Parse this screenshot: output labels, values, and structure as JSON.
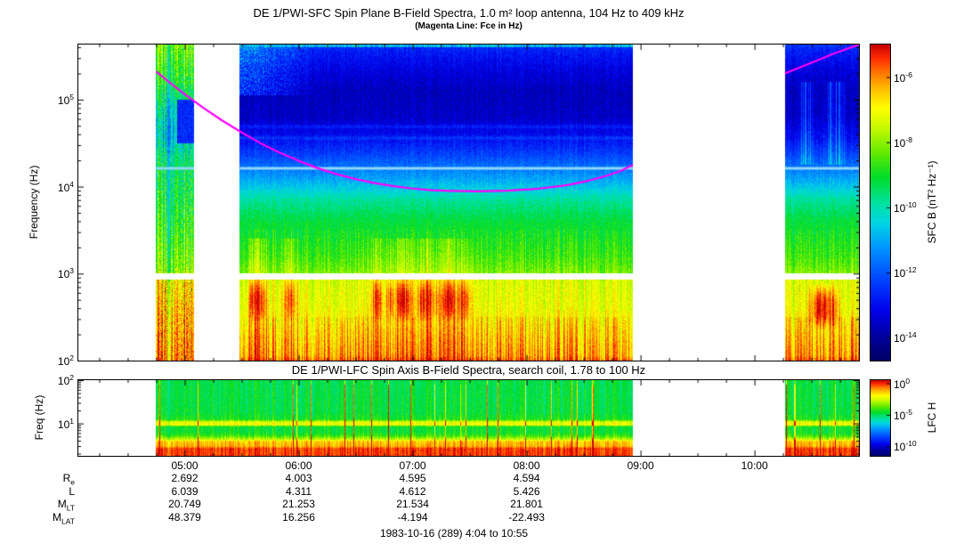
{
  "caption": "1983-10-16 (289) 4:04 to 10:55",
  "colormap_stops": [
    {
      "v": 0.0,
      "rgb": [
        0,
        0,
        100
      ]
    },
    {
      "v": 0.08,
      "rgb": [
        0,
        0,
        160
      ]
    },
    {
      "v": 0.16,
      "rgb": [
        0,
        0,
        235
      ]
    },
    {
      "v": 0.26,
      "rgb": [
        0,
        70,
        255
      ]
    },
    {
      "v": 0.36,
      "rgb": [
        0,
        150,
        255
      ]
    },
    {
      "v": 0.44,
      "rgb": [
        0,
        215,
        225
      ]
    },
    {
      "v": 0.5,
      "rgb": [
        0,
        225,
        160
      ]
    },
    {
      "v": 0.58,
      "rgb": [
        0,
        220,
        40
      ]
    },
    {
      "v": 0.66,
      "rgb": [
        100,
        235,
        0
      ]
    },
    {
      "v": 0.74,
      "rgb": [
        200,
        250,
        0
      ]
    },
    {
      "v": 0.8,
      "rgb": [
        255,
        255,
        0
      ]
    },
    {
      "v": 0.86,
      "rgb": [
        255,
        190,
        0
      ]
    },
    {
      "v": 0.91,
      "rgb": [
        255,
        120,
        0
      ]
    },
    {
      "v": 0.96,
      "rgb": [
        255,
        40,
        0
      ]
    },
    {
      "v": 1.0,
      "rgb": [
        200,
        0,
        0
      ]
    }
  ],
  "chart_data": [
    {
      "type": "heatmap",
      "title": "DE 1/PWI-SFC  Spin Plane B-Field Spectra, 1.0 m² loop antenna, 104 Hz to 409 kHz",
      "subtitle": "(Magenta Line: Fce in Hz)",
      "ylabel": "Frequency (Hz)",
      "yscale": "log",
      "ylim_hz": [
        100,
        430000
      ],
      "yticks": [
        {
          "base": "10",
          "sup": "2",
          "exp": 2
        },
        {
          "base": "10",
          "sup": "3",
          "exp": 3
        },
        {
          "base": "10",
          "sup": "4",
          "exp": 4
        },
        {
          "base": "10",
          "sup": "5",
          "exp": 5
        }
      ],
      "xlim_minutes": [
        244,
        655
      ],
      "xticks": [
        {
          "minute": 300,
          "label": "05:00"
        },
        {
          "minute": 360,
          "label": "06:00"
        },
        {
          "minute": 420,
          "label": "07:00"
        },
        {
          "minute": 480,
          "label": "08:00"
        },
        {
          "minute": 540,
          "label": "09:00"
        },
        {
          "minute": 600,
          "label": "10:00"
        }
      ],
      "colorbar": {
        "label": "SFC B (nT² Hz⁻¹)",
        "range_exponents": [
          -5,
          -14.7
        ],
        "ticks": [
          {
            "base": "10",
            "sup": "-6",
            "exp": -6
          },
          {
            "base": "10",
            "sup": "-8",
            "exp": -8
          },
          {
            "base": "10",
            "sup": "-10",
            "exp": -10
          },
          {
            "base": "10",
            "sup": "-12",
            "exp": -12
          },
          {
            "base": "10",
            "sup": "-14",
            "exp": -14
          }
        ]
      },
      "data_segments_minutes": [
        [
          285,
          305
        ],
        [
          329,
          536
        ],
        [
          616,
          655
        ]
      ],
      "spectral_profile": [
        [
          2.0,
          0.93
        ],
        [
          2.06,
          0.88
        ],
        [
          2.2,
          0.86
        ],
        [
          2.45,
          0.82
        ],
        [
          2.6,
          0.78
        ],
        [
          2.93,
          0.76
        ],
        [
          3.005,
          0.68
        ],
        [
          3.2,
          0.63
        ],
        [
          3.6,
          0.57
        ],
        [
          3.85,
          0.5
        ],
        [
          4.0,
          0.42
        ],
        [
          4.15,
          0.35
        ],
        [
          4.35,
          0.26
        ],
        [
          4.55,
          0.18
        ],
        [
          4.8,
          0.12
        ],
        [
          5.1,
          0.11
        ],
        [
          5.35,
          0.15
        ],
        [
          5.55,
          0.2
        ],
        [
          5.6335,
          0.24
        ]
      ],
      "segment1_profile": [
        [
          2.0,
          0.9
        ],
        [
          2.5,
          0.85
        ],
        [
          2.9,
          0.8
        ],
        [
          3.05,
          0.68
        ],
        [
          3.4,
          0.62
        ],
        [
          3.9,
          0.56
        ],
        [
          4.3,
          0.52
        ],
        [
          4.6,
          0.42
        ],
        [
          4.9,
          0.48
        ],
        [
          5.2,
          0.58
        ],
        [
          5.5,
          0.63
        ],
        [
          5.6335,
          0.66
        ]
      ],
      "features": {
        "white_band_logf": [
          2.93,
          3.005
        ],
        "cyan_line": {
          "logf": 4.21,
          "color": "#8fd8f8",
          "segments_minutes": [
            [
              285,
              305
            ],
            [
              329,
              536
            ],
            [
              616,
              655
            ]
          ]
        },
        "light_blue_lines_logf": [
          4.56,
          4.69
        ],
        "low_freq_red_patches": {
          "t_range": [
            332,
            448
          ],
          "logf_range": [
            2.45,
            2.95
          ]
        },
        "akr_patch": {
          "t_range": [
            329,
            372
          ],
          "logf_min": 5.05
        },
        "top_edge_line_logf": 5.6,
        "seg1_blue_patch": {
          "t_range": [
            296,
            305
          ],
          "logf_range": [
            4.5,
            5.0
          ]
        },
        "right_red_blob": {
          "t_range": [
            627,
            646
          ],
          "logf_range": [
            2.35,
            2.9
          ]
        },
        "right_cyan_streaks": {
          "t_ranges": [
            [
              623,
              632
            ],
            [
              636,
              649
            ]
          ],
          "logf_range": [
            4.25,
            5.2
          ]
        }
      },
      "fce_line": {
        "color": "#ff00ff",
        "segments_hz": [
          [
            [
              285,
              210000
            ],
            [
              292,
              158000
            ],
            [
              300,
              115000
            ],
            [
              310,
              80000
            ],
            [
              320,
              57000
            ],
            [
              330,
              42000
            ],
            [
              340,
              31500
            ],
            [
              350,
              24500
            ],
            [
              360,
              19800
            ],
            [
              370,
              16300
            ],
            [
              380,
              13900
            ],
            [
              390,
              12200
            ],
            [
              400,
              11000
            ],
            [
              410,
              10100
            ],
            [
              420,
              9500
            ],
            [
              430,
              9100
            ],
            [
              440,
              8950
            ],
            [
              455,
              8850
            ],
            [
              470,
              9000
            ],
            [
              485,
              9400
            ],
            [
              500,
              10300
            ],
            [
              512,
              11600
            ],
            [
              522,
              13300
            ],
            [
              530,
              15300
            ],
            [
              536,
              17800
            ]
          ],
          [
            [
              616,
              200000
            ],
            [
              630,
              265000
            ],
            [
              642,
              340000
            ],
            [
              655,
              430000
            ]
          ]
        ]
      }
    },
    {
      "type": "heatmap",
      "title": "DE 1/PWI-LFC  Spin Axis B-Field Spectra, search coil, 1.78 to 100 Hz",
      "ylabel": "Freq (Hz)",
      "yscale": "log",
      "ylim_hz": [
        1.78,
        100
      ],
      "yticks": [
        {
          "base": "10",
          "sup": "1",
          "exp": 1
        },
        {
          "base": "10",
          "sup": "2",
          "exp": 2
        }
      ],
      "colorbar": {
        "label": "LFC H",
        "range_exponents": [
          0.5,
          -11.5
        ],
        "ticks": [
          {
            "base": "10",
            "sup": "0",
            "exp": 0
          },
          {
            "base": "10",
            "sup": "-5",
            "exp": -5
          },
          {
            "base": "10",
            "sup": "-10",
            "exp": -10
          }
        ]
      },
      "data_segments_minutes": [
        [
          285,
          536
        ],
        [
          616,
          655
        ]
      ],
      "spectral_profile": [
        [
          0.25,
          0.95
        ],
        [
          0.42,
          0.95
        ],
        [
          0.47,
          0.87
        ],
        [
          0.58,
          0.85
        ],
        [
          0.63,
          0.74
        ],
        [
          0.72,
          0.62
        ],
        [
          0.8,
          0.58
        ],
        [
          0.93,
          0.58
        ],
        [
          0.96,
          0.78
        ],
        [
          1.03,
          0.78
        ],
        [
          1.09,
          0.6
        ],
        [
          1.25,
          0.57
        ],
        [
          2.0,
          0.56
        ]
      ]
    }
  ],
  "ephemeris": {
    "row_labels": [
      {
        "base": "R",
        "sub": "e"
      },
      {
        "base": "L",
        "sub": ""
      },
      {
        "base": "M",
        "sub": "LT"
      },
      {
        "base": "M",
        "sub": "LAT"
      }
    ],
    "columns_minutes": [
      300,
      360,
      420,
      480
    ],
    "values": [
      [
        "2.692",
        "4.003",
        "4.595",
        "4.594"
      ],
      [
        "6.039",
        "4.311",
        "4.612",
        "5.426"
      ],
      [
        "20.749",
        "21.253",
        "21.534",
        "21.801"
      ],
      [
        "48.379",
        "16.256",
        "-4.194",
        "-22.493"
      ]
    ]
  }
}
